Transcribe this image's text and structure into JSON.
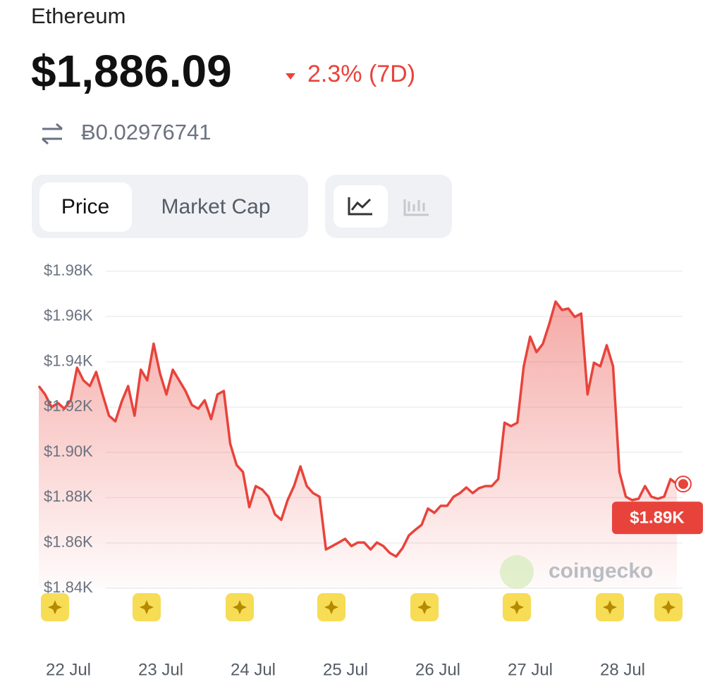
{
  "header": {
    "name": "Ethereum",
    "price": "$1,886.09",
    "change": "2.3% (7D)",
    "btc_price": "Ƀ0.02976741"
  },
  "tabs": [
    "Price",
    "Market Cap"
  ],
  "chart_data": {
    "type": "line",
    "series": [
      {
        "color": "#e8433b",
        "values": [
          1929.3,
          1925.6,
          1920,
          1921.8,
          1919.3,
          1923,
          1937.4,
          1931.8,
          1929.3,
          1935.5,
          1925.6,
          1916.2,
          1913.7,
          1922.5,
          1929.3,
          1916.2,
          1936.5,
          1931.8,
          1948,
          1934.9,
          1925.6,
          1936.5,
          1931.8,
          1927.1,
          1920.9,
          1919.3,
          1923,
          1914.7,
          1925.6,
          1927.1,
          1903.8,
          1894.4,
          1891.3,
          1875.8,
          1885.1,
          1883.6,
          1880.4,
          1872.7,
          1870.2,
          1878.9,
          1885.1,
          1893.8,
          1885.1,
          1882,
          1880.4,
          1857.1,
          1858.6,
          1860.2,
          1861.8,
          1858.6,
          1860.2,
          1860.2,
          1857.1,
          1860.2,
          1858.6,
          1855.6,
          1854,
          1857.7,
          1863.3,
          1865.8,
          1868,
          1875.2,
          1873.3,
          1876.4,
          1876.4,
          1880.4,
          1882,
          1884.5,
          1882,
          1884.2,
          1885.1,
          1885.1,
          1888.2,
          1913.1,
          1911.6,
          1913.1,
          1938,
          1951.1,
          1944.3,
          1948,
          1956.7,
          1966.6,
          1962.9,
          1963.5,
          1959.8,
          1961.3,
          1925.6,
          1939.6,
          1938,
          1947.3,
          1938,
          1891.3,
          1880.4,
          1878.9,
          1879.5,
          1885.1,
          1880.4,
          1879.5,
          1880.4,
          1888.2,
          1886
        ]
      }
    ],
    "ylim": [
      1840,
      1980
    ],
    "yticks": [
      {
        "value": 1840,
        "label": "$1.84K"
      },
      {
        "value": 1860,
        "label": "$1.86K"
      },
      {
        "value": 1880,
        "label": "$1.88K"
      },
      {
        "value": 1900,
        "label": "$1.90K"
      },
      {
        "value": 1920,
        "label": "$1.92K"
      },
      {
        "value": 1940,
        "label": "$1.94K"
      },
      {
        "value": 1960,
        "label": "$1.96K"
      },
      {
        "value": 1980,
        "label": "$1.98K"
      }
    ],
    "xticks": [
      "22 Jul",
      "23 Jul",
      "24 Jul",
      "25 Jul",
      "26 Jul",
      "27 Jul",
      "28 Jul"
    ],
    "last_price_label": "$1.89K",
    "watermark": "coingecko",
    "grid": true
  }
}
